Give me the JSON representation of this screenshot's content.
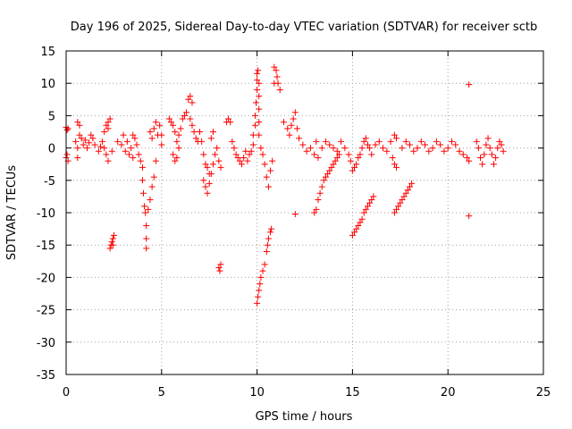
{
  "chart_data": {
    "type": "scatter",
    "title": "Day 196 of 2025, Sidereal Day-to-day VTEC variation (SDTVAR) for receiver sctb",
    "xlabel": "GPS time / hours",
    "ylabel": "SDTVAR / TECUs",
    "xlim": [
      0,
      25
    ],
    "ylim": [
      -35,
      15
    ],
    "xticks": [
      0,
      5,
      10,
      15,
      20,
      25
    ],
    "yticks": [
      -35,
      -30,
      -25,
      -20,
      -15,
      -10,
      -5,
      0,
      5,
      10,
      15
    ],
    "grid": true,
    "marker": "+",
    "color": "#ff0000",
    "series": [
      {
        "name": "SDTVAR",
        "points": [
          [
            0.0,
            3.2
          ],
          [
            0.05,
            2.8
          ],
          [
            0.1,
            3.0
          ],
          [
            0.0,
            -1.5
          ],
          [
            0.05,
            -1.0
          ],
          [
            0.1,
            -2.0
          ],
          [
            0.5,
            1.0
          ],
          [
            0.6,
            0.0
          ],
          [
            0.6,
            -1.5
          ],
          [
            0.6,
            4.0
          ],
          [
            0.7,
            3.5
          ],
          [
            0.7,
            2.0
          ],
          [
            0.8,
            1.5
          ],
          [
            0.9,
            0.5
          ],
          [
            1.0,
            1.2
          ],
          [
            1.1,
            0.0
          ],
          [
            1.2,
            0.8
          ],
          [
            1.3,
            2.0
          ],
          [
            1.4,
            1.5
          ],
          [
            1.5,
            0.5
          ],
          [
            1.7,
            -0.5
          ],
          [
            1.8,
            0.2
          ],
          [
            1.9,
            1.0
          ],
          [
            2.0,
            2.5
          ],
          [
            2.1,
            3.5
          ],
          [
            2.2,
            4.0
          ],
          [
            2.3,
            4.5
          ],
          [
            2.2,
            3.0
          ],
          [
            2.1,
            -1.0
          ],
          [
            2.2,
            -2.0
          ],
          [
            2.0,
            0.0
          ],
          [
            2.4,
            -0.5
          ],
          [
            2.3,
            -15.5
          ],
          [
            2.35,
            -15.0
          ],
          [
            2.4,
            -14.5
          ],
          [
            2.45,
            -14.0
          ],
          [
            2.5,
            -13.5
          ],
          [
            2.45,
            -15.0
          ],
          [
            2.7,
            1.0
          ],
          [
            2.9,
            0.5
          ],
          [
            3.0,
            2.0
          ],
          [
            3.1,
            -0.5
          ],
          [
            3.2,
            1.0
          ],
          [
            3.3,
            -1.0
          ],
          [
            3.4,
            0.0
          ],
          [
            3.5,
            2.0
          ],
          [
            3.5,
            -1.5
          ],
          [
            3.6,
            1.5
          ],
          [
            3.7,
            0.5
          ],
          [
            3.8,
            -1.0
          ],
          [
            3.9,
            -2.0
          ],
          [
            4.0,
            -3.0
          ],
          [
            4.0,
            -5.0
          ],
          [
            4.05,
            -7.0
          ],
          [
            4.1,
            -9.0
          ],
          [
            4.15,
            -10.0
          ],
          [
            4.2,
            -12.0
          ],
          [
            4.2,
            -14.0
          ],
          [
            4.2,
            -15.5
          ],
          [
            4.3,
            -9.5
          ],
          [
            4.4,
            -8.0
          ],
          [
            4.5,
            -6.0
          ],
          [
            4.6,
            -4.5
          ],
          [
            4.7,
            -2.0
          ],
          [
            4.4,
            2.5
          ],
          [
            4.5,
            1.5
          ],
          [
            4.6,
            3.0
          ],
          [
            4.7,
            4.0
          ],
          [
            4.8,
            2.0
          ],
          [
            4.9,
            3.5
          ],
          [
            5.0,
            2.0
          ],
          [
            5.0,
            0.5
          ],
          [
            5.4,
            4.5
          ],
          [
            5.5,
            4.0
          ],
          [
            5.6,
            3.5
          ],
          [
            5.7,
            2.5
          ],
          [
            5.8,
            1.0
          ],
          [
            5.9,
            0.0
          ],
          [
            5.6,
            -1.0
          ],
          [
            5.7,
            -2.0
          ],
          [
            5.8,
            -1.5
          ],
          [
            5.9,
            2.0
          ],
          [
            6.0,
            3.0
          ],
          [
            6.1,
            4.5
          ],
          [
            6.2,
            5.0
          ],
          [
            6.3,
            5.5
          ],
          [
            6.4,
            7.5
          ],
          [
            6.5,
            8.0
          ],
          [
            6.6,
            7.0
          ],
          [
            6.5,
            4.5
          ],
          [
            6.6,
            3.5
          ],
          [
            6.7,
            2.5
          ],
          [
            6.8,
            1.5
          ],
          [
            6.9,
            1.0
          ],
          [
            7.0,
            2.5
          ],
          [
            7.1,
            1.0
          ],
          [
            7.2,
            -1.0
          ],
          [
            7.3,
            -2.5
          ],
          [
            7.4,
            -3.0
          ],
          [
            7.5,
            -4.0
          ],
          [
            7.2,
            -5.0
          ],
          [
            7.3,
            -6.0
          ],
          [
            7.4,
            -7.0
          ],
          [
            7.5,
            -5.5
          ],
          [
            7.6,
            -4.0
          ],
          [
            7.7,
            -2.5
          ],
          [
            7.8,
            -1.0
          ],
          [
            7.9,
            0.0
          ],
          [
            7.6,
            1.5
          ],
          [
            7.7,
            2.5
          ],
          [
            8.0,
            -2.0
          ],
          [
            8.1,
            -3.0
          ],
          [
            8.0,
            -18.5
          ],
          [
            8.05,
            -19.0
          ],
          [
            8.1,
            -18.0
          ],
          [
            8.4,
            4.0
          ],
          [
            8.5,
            4.5
          ],
          [
            8.6,
            4.0
          ],
          [
            8.7,
            1.0
          ],
          [
            8.8,
            0.0
          ],
          [
            8.9,
            -1.0
          ],
          [
            9.0,
            -1.5
          ],
          [
            9.1,
            -2.0
          ],
          [
            9.2,
            -2.5
          ],
          [
            9.3,
            -1.5
          ],
          [
            9.4,
            -0.5
          ],
          [
            9.5,
            -2.0
          ],
          [
            9.6,
            -1.0
          ],
          [
            9.7,
            -0.5
          ],
          [
            9.8,
            0.5
          ],
          [
            9.8,
            2.0
          ],
          [
            9.9,
            3.5
          ],
          [
            9.9,
            5.0
          ],
          [
            9.95,
            7.0
          ],
          [
            10.0,
            9.0
          ],
          [
            10.0,
            10.5
          ],
          [
            10.0,
            11.5
          ],
          [
            10.05,
            12.0
          ],
          [
            10.1,
            10.0
          ],
          [
            10.1,
            8.0
          ],
          [
            10.1,
            6.0
          ],
          [
            10.1,
            4.0
          ],
          [
            10.1,
            2.0
          ],
          [
            10.2,
            0.0
          ],
          [
            10.3,
            -1.0
          ],
          [
            10.4,
            -2.5
          ],
          [
            10.5,
            -4.5
          ],
          [
            10.6,
            -6.0
          ],
          [
            10.7,
            -3.5
          ],
          [
            10.8,
            -2.0
          ],
          [
            10.0,
            -24.0
          ],
          [
            10.05,
            -23.0
          ],
          [
            10.1,
            -22.0
          ],
          [
            10.15,
            -21.0
          ],
          [
            10.2,
            -20.0
          ],
          [
            10.3,
            -19.0
          ],
          [
            10.4,
            -18.0
          ],
          [
            10.5,
            -16.0
          ],
          [
            10.55,
            -15.0
          ],
          [
            10.6,
            -14.0
          ],
          [
            10.7,
            -13.0
          ],
          [
            10.75,
            -12.5
          ],
          [
            10.9,
            12.5
          ],
          [
            11.0,
            12.0
          ],
          [
            11.05,
            11.0
          ],
          [
            11.1,
            10.0
          ],
          [
            11.2,
            9.0
          ],
          [
            10.9,
            10.0
          ],
          [
            11.4,
            4.0
          ],
          [
            11.6,
            3.0
          ],
          [
            11.7,
            2.0
          ],
          [
            11.8,
            3.5
          ],
          [
            11.9,
            4.5
          ],
          [
            12.0,
            5.5
          ],
          [
            12.1,
            3.0
          ],
          [
            12.2,
            1.5
          ],
          [
            12.0,
            -10.2
          ],
          [
            12.4,
            0.5
          ],
          [
            12.6,
            -0.5
          ],
          [
            12.8,
            0.0
          ],
          [
            13.0,
            -1.0
          ],
          [
            13.1,
            1.0
          ],
          [
            13.2,
            -1.5
          ],
          [
            13.0,
            -10.0
          ],
          [
            13.1,
            -9.5
          ],
          [
            13.2,
            -8.0
          ],
          [
            13.3,
            -7.0
          ],
          [
            13.4,
            -6.0
          ],
          [
            13.5,
            -5.0
          ],
          [
            13.6,
            -4.5
          ],
          [
            13.7,
            -4.0
          ],
          [
            13.8,
            -3.5
          ],
          [
            13.9,
            -3.0
          ],
          [
            14.0,
            -2.5
          ],
          [
            14.1,
            -2.0
          ],
          [
            14.2,
            -1.5
          ],
          [
            14.3,
            -1.0
          ],
          [
            13.4,
            0.0
          ],
          [
            13.6,
            1.0
          ],
          [
            13.8,
            0.5
          ],
          [
            14.0,
            0.0
          ],
          [
            14.2,
            -0.5
          ],
          [
            14.4,
            1.0
          ],
          [
            14.6,
            0.0
          ],
          [
            14.8,
            -1.0
          ],
          [
            14.9,
            -2.0
          ],
          [
            15.0,
            -3.5
          ],
          [
            15.1,
            -3.0
          ],
          [
            15.2,
            -2.5
          ],
          [
            15.3,
            -1.5
          ],
          [
            15.4,
            -1.0
          ],
          [
            15.5,
            0.0
          ],
          [
            15.6,
            1.0
          ],
          [
            15.7,
            1.5
          ],
          [
            15.8,
            0.5
          ],
          [
            15.9,
            0.0
          ],
          [
            16.0,
            -1.0
          ],
          [
            15.0,
            -13.5
          ],
          [
            15.1,
            -13.0
          ],
          [
            15.2,
            -12.5
          ],
          [
            15.3,
            -12.0
          ],
          [
            15.4,
            -11.5
          ],
          [
            15.5,
            -11.0
          ],
          [
            15.6,
            -10.0
          ],
          [
            15.7,
            -9.5
          ],
          [
            15.8,
            -9.0
          ],
          [
            15.9,
            -8.5
          ],
          [
            16.0,
            -8.0
          ],
          [
            16.1,
            -7.5
          ],
          [
            16.2,
            0.5
          ],
          [
            16.4,
            1.0
          ],
          [
            16.6,
            0.0
          ],
          [
            16.8,
            -0.5
          ],
          [
            17.0,
            1.0
          ],
          [
            17.2,
            2.0
          ],
          [
            17.3,
            1.5
          ],
          [
            17.1,
            -1.5
          ],
          [
            17.2,
            -2.5
          ],
          [
            17.3,
            -3.0
          ],
          [
            17.2,
            -10.0
          ],
          [
            17.3,
            -9.5
          ],
          [
            17.4,
            -9.0
          ],
          [
            17.5,
            -8.5
          ],
          [
            17.6,
            -8.0
          ],
          [
            17.7,
            -7.5
          ],
          [
            17.8,
            -7.0
          ],
          [
            17.9,
            -6.5
          ],
          [
            18.0,
            -6.0
          ],
          [
            18.1,
            -5.5
          ],
          [
            17.6,
            0.0
          ],
          [
            17.8,
            1.0
          ],
          [
            18.0,
            0.5
          ],
          [
            18.2,
            -0.5
          ],
          [
            18.4,
            0.0
          ],
          [
            18.6,
            1.0
          ],
          [
            18.8,
            0.5
          ],
          [
            19.0,
            -0.5
          ],
          [
            19.2,
            0.0
          ],
          [
            19.4,
            1.0
          ],
          [
            19.6,
            0.5
          ],
          [
            19.8,
            -0.5
          ],
          [
            20.0,
            0.0
          ],
          [
            20.2,
            1.0
          ],
          [
            20.4,
            0.5
          ],
          [
            20.6,
            -0.5
          ],
          [
            20.8,
            -1.0
          ],
          [
            21.0,
            -1.5
          ],
          [
            21.1,
            -2.0
          ],
          [
            21.1,
            -10.5
          ],
          [
            21.1,
            9.8
          ],
          [
            21.5,
            1.0
          ],
          [
            21.6,
            0.0
          ],
          [
            21.7,
            -1.5
          ],
          [
            21.8,
            -2.5
          ],
          [
            21.9,
            -1.0
          ],
          [
            22.0,
            0.5
          ],
          [
            22.1,
            1.5
          ],
          [
            22.2,
            0.0
          ],
          [
            22.3,
            -1.0
          ],
          [
            22.4,
            -2.5
          ],
          [
            22.5,
            -1.5
          ],
          [
            22.6,
            0.0
          ],
          [
            22.7,
            1.0
          ],
          [
            22.8,
            0.5
          ],
          [
            22.9,
            -0.5
          ]
        ]
      }
    ]
  }
}
